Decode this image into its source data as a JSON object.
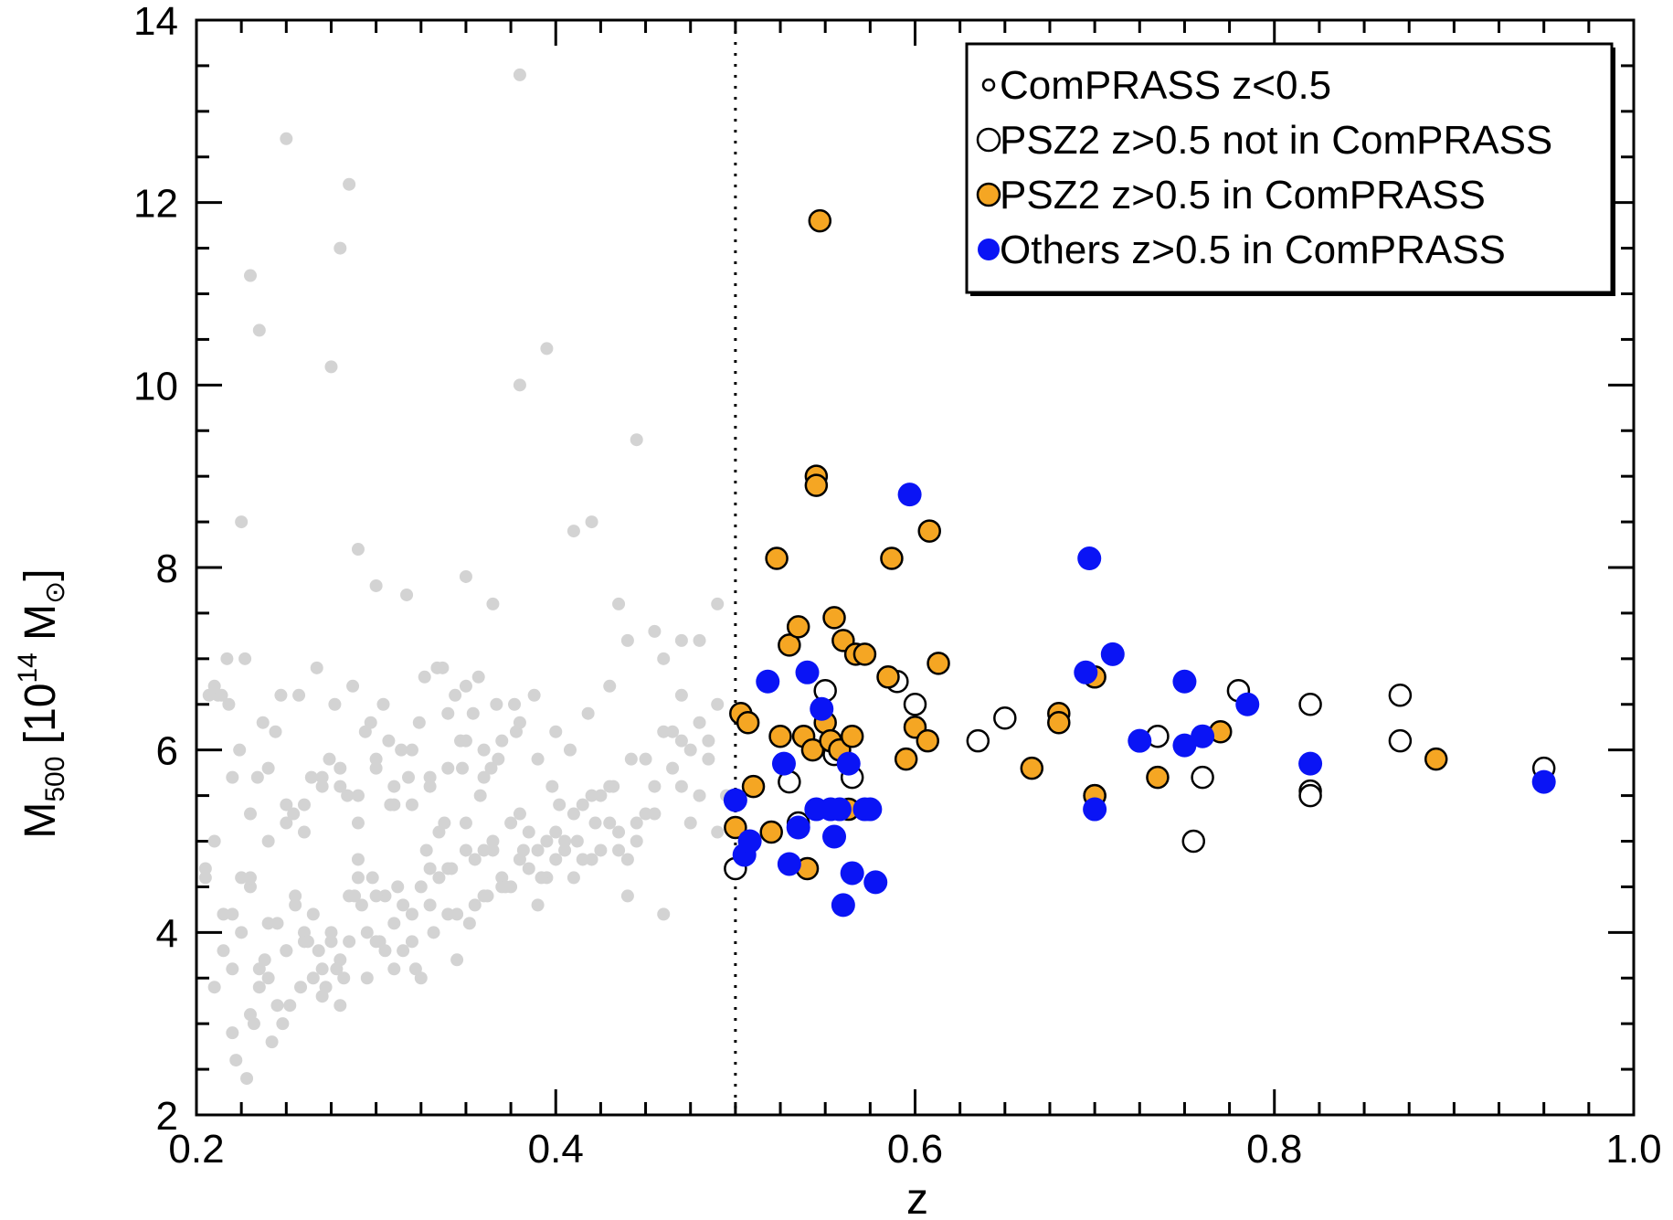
{
  "chart_data": {
    "type": "scatter",
    "xlabel": "z",
    "ylabel": {
      "base": "M",
      "subscript": "500",
      "open": " [10",
      "exponent": "14",
      "unit": " M",
      "unit_subscript": "⊙",
      "close": "]"
    },
    "xlim": [
      0.2,
      1.0
    ],
    "ylim": [
      2,
      14
    ],
    "xticks": [
      "0.2",
      "0.4",
      "0.6",
      "0.8",
      "1.0"
    ],
    "yticks": [
      "2",
      "4",
      "6",
      "8",
      "10",
      "12",
      "14"
    ],
    "x_tick_values": [
      0.2,
      0.4,
      0.6,
      0.8,
      1.0
    ],
    "y_tick_values": [
      2,
      4,
      6,
      8,
      10,
      12,
      14
    ],
    "x_minor_step": 0.025,
    "y_minor_step": 0.5,
    "grid": false,
    "vertical_line": {
      "x": 0.5,
      "style": "dotted"
    },
    "legend": {
      "placement": "top-right",
      "entries": [
        {
          "label": "ComPRASS z<0.5",
          "marker": "small-open",
          "color": "#ffffff"
        },
        {
          "label": "PSZ2 z>0.5 not in ComPRASS",
          "marker": "open",
          "color": "#ffffff"
        },
        {
          "label": "PSZ2 z>0.5 in ComPRASS",
          "marker": "filled-outlined",
          "color": "#f5a623"
        },
        {
          "label": "Others z>0.5 in ComPRASS",
          "marker": "filled",
          "color": "#0a14f5"
        }
      ]
    },
    "series": [
      {
        "name": "ComPRASS z<0.5",
        "color": "#d3d3d3",
        "x": [
          0.205,
          0.21,
          0.215,
          0.22,
          0.225,
          0.23,
          0.235,
          0.24,
          0.245,
          0.25,
          0.255,
          0.26,
          0.265,
          0.27,
          0.275,
          0.28,
          0.285,
          0.29,
          0.295,
          0.3,
          0.305,
          0.31,
          0.315,
          0.32,
          0.325,
          0.33,
          0.335,
          0.34,
          0.345,
          0.35,
          0.355,
          0.36,
          0.365,
          0.37,
          0.375,
          0.38,
          0.385,
          0.39,
          0.395,
          0.4,
          0.405,
          0.41,
          0.415,
          0.42,
          0.425,
          0.43,
          0.435,
          0.44,
          0.445,
          0.45,
          0.455,
          0.46,
          0.465,
          0.47,
          0.475,
          0.48,
          0.485,
          0.49,
          0.495,
          0.21,
          0.22,
          0.23,
          0.24,
          0.25,
          0.26,
          0.27,
          0.28,
          0.29,
          0.3,
          0.31,
          0.32,
          0.33,
          0.34,
          0.35,
          0.36,
          0.37,
          0.38,
          0.39,
          0.4,
          0.41,
          0.42,
          0.43,
          0.44,
          0.45,
          0.46,
          0.47,
          0.48,
          0.49,
          0.205,
          0.215,
          0.225,
          0.235,
          0.245,
          0.255,
          0.265,
          0.275,
          0.285,
          0.295,
          0.305,
          0.315,
          0.325,
          0.335,
          0.345,
          0.355,
          0.365,
          0.375,
          0.385,
          0.395,
          0.405,
          0.415,
          0.425,
          0.435,
          0.445,
          0.455,
          0.465,
          0.475,
          0.485,
          0.212,
          0.222,
          0.232,
          0.242,
          0.252,
          0.262,
          0.272,
          0.282,
          0.292,
          0.302,
          0.312,
          0.322,
          0.332,
          0.342,
          0.352,
          0.362,
          0.372,
          0.382,
          0.392,
          0.402,
          0.412,
          0.422,
          0.432,
          0.442,
          0.218,
          0.228,
          0.238,
          0.248,
          0.258,
          0.268,
          0.278,
          0.288,
          0.298,
          0.308,
          0.318,
          0.328,
          0.338,
          0.348,
          0.358,
          0.368,
          0.378,
          0.388,
          0.398,
          0.408,
          0.418,
          0.21,
          0.22,
          0.23,
          0.24,
          0.25,
          0.26,
          0.27,
          0.28,
          0.29,
          0.3,
          0.31,
          0.32,
          0.33,
          0.34,
          0.35,
          0.36,
          0.37,
          0.38,
          0.39,
          0.4,
          0.207,
          0.217,
          0.227,
          0.237,
          0.247,
          0.257,
          0.267,
          0.277,
          0.287,
          0.297,
          0.307,
          0.317,
          0.327,
          0.337,
          0.347,
          0.357,
          0.367,
          0.377,
          0.214,
          0.224,
          0.234,
          0.244,
          0.254,
          0.264,
          0.274,
          0.284,
          0.294,
          0.304,
          0.314,
          0.324,
          0.334,
          0.344,
          0.354,
          0.364,
          0.22,
          0.23,
          0.24,
          0.25,
          0.26,
          0.27,
          0.28,
          0.29,
          0.3,
          0.31,
          0.32,
          0.33,
          0.34,
          0.35,
          0.36,
          0.25,
          0.28,
          0.285,
          0.23,
          0.235,
          0.275,
          0.395,
          0.38,
          0.38,
          0.445,
          0.225,
          0.29,
          0.41,
          0.3,
          0.35,
          0.365,
          0.42,
          0.435,
          0.455,
          0.49,
          0.47,
          0.46,
          0.44,
          0.43,
          0.47,
          0.48
        ],
        "y": [
          4.6,
          5.0,
          4.2,
          3.6,
          4.0,
          4.5,
          3.4,
          4.1,
          3.2,
          3.8,
          4.4,
          3.9,
          4.2,
          3.6,
          3.9,
          3.2,
          4.4,
          4.8,
          4.0,
          3.9,
          4.4,
          4.1,
          3.8,
          4.2,
          4.5,
          4.3,
          5.1,
          4.7,
          3.7,
          5.2,
          4.3,
          4.9,
          5.0,
          4.6,
          5.2,
          5.3,
          4.7,
          4.9,
          5.0,
          5.1,
          4.9,
          4.6,
          5.4,
          4.8,
          4.9,
          5.6,
          5.1,
          4.8,
          5.2,
          5.9,
          5.6,
          6.2,
          5.8,
          6.1,
          5.2,
          6.3,
          5.9,
          6.5,
          5.5,
          3.4,
          2.9,
          3.1,
          3.5,
          3.8,
          4.0,
          3.3,
          3.7,
          4.6,
          4.4,
          3.6,
          3.9,
          4.7,
          4.2,
          4.9,
          4.4,
          4.5,
          4.8,
          4.3,
          4.8,
          5.3,
          5.5,
          5.2,
          4.4,
          5.3,
          4.2,
          5.6,
          5.5,
          5.1,
          4.7,
          3.8,
          4.6,
          3.6,
          4.1,
          4.3,
          3.5,
          4.0,
          3.9,
          3.5,
          3.8,
          4.3,
          3.5,
          4.6,
          4.2,
          4.8,
          4.9,
          4.5,
          5.1,
          4.6,
          5.0,
          4.8,
          5.5,
          4.9,
          5.0,
          5.3,
          6.2,
          6.0,
          6.1,
          6.6,
          2.6,
          3.0,
          2.8,
          3.2,
          3.9,
          3.4,
          3.5,
          4.3,
          3.9,
          4.5,
          3.6,
          4.0,
          4.7,
          4.1,
          4.4,
          4.5,
          4.9,
          4.6,
          5.4,
          5.0,
          5.2,
          5.6,
          5.9,
          6.5,
          2.4,
          3.7,
          3.0,
          3.4,
          3.8,
          3.6,
          4.4,
          4.6,
          5.4,
          5.7,
          4.9,
          5.2,
          5.8,
          5.5,
          5.9,
          6.2,
          6.6,
          5.6,
          6.0,
          6.4,
          6.7,
          4.2,
          4.6,
          5.0,
          5.4,
          5.1,
          5.6,
          5.6,
          5.2,
          5.9,
          5.4,
          6.0,
          5.7,
          6.4,
          6.7,
          6.0,
          6.1,
          6.3,
          5.9,
          6.2,
          6.6,
          7.0,
          7.0,
          6.3,
          6.6,
          6.6,
          6.9,
          6.5,
          6.7,
          6.3,
          6.1,
          7.7,
          6.8,
          6.9,
          6.1,
          6.8,
          6.5,
          6.5,
          6.6,
          6.0,
          5.7,
          6.2,
          5.3,
          5.7,
          5.9,
          5.5,
          6.2,
          6.5,
          6.0,
          6.3,
          6.9,
          6.6,
          6.4,
          5.8,
          5.7,
          5.3,
          5.8,
          5.2,
          5.4,
          5.7,
          5.8,
          5.5,
          5.8,
          5.6,
          5.4,
          5.6,
          5.8,
          6.1,
          5.7,
          12.7,
          11.5,
          12.2,
          11.2,
          10.6,
          10.2,
          10.4,
          10.0,
          13.4,
          9.4,
          8.5,
          8.2,
          8.4,
          7.8,
          7.9,
          7.6,
          8.5,
          7.6,
          7.3,
          7.6,
          7.2,
          7.0,
          7.2,
          6.7,
          6.6,
          7.2
        ],
        "marker": "small-filled"
      },
      {
        "name": "PSZ2 z>0.5 not in ComPRASS",
        "color": "#ffffff",
        "x": [
          0.5,
          0.53,
          0.535,
          0.55,
          0.555,
          0.565,
          0.59,
          0.6,
          0.635,
          0.65,
          0.7,
          0.735,
          0.755,
          0.76,
          0.78,
          0.82,
          0.82,
          0.82,
          0.87,
          0.87,
          0.95
        ],
        "y": [
          4.7,
          5.65,
          5.2,
          6.65,
          5.95,
          5.7,
          6.75,
          6.5,
          6.1,
          6.35,
          5.5,
          6.15,
          5.0,
          5.7,
          6.65,
          6.5,
          5.55,
          5.5,
          6.6,
          6.1,
          5.8
        ],
        "marker": "open"
      },
      {
        "name": "PSZ2 z>0.5 in ComPRASS",
        "color": "#f5a623",
        "x": [
          0.5,
          0.503,
          0.507,
          0.51,
          0.52,
          0.523,
          0.525,
          0.53,
          0.535,
          0.538,
          0.54,
          0.543,
          0.545,
          0.545,
          0.547,
          0.55,
          0.553,
          0.555,
          0.558,
          0.56,
          0.563,
          0.565,
          0.567,
          0.572,
          0.585,
          0.587,
          0.595,
          0.6,
          0.607,
          0.608,
          0.613,
          0.665,
          0.68,
          0.68,
          0.7,
          0.7,
          0.735,
          0.77,
          0.89
        ],
        "y": [
          5.15,
          6.4,
          6.3,
          5.6,
          5.1,
          8.1,
          6.15,
          7.15,
          7.35,
          6.15,
          4.7,
          6.0,
          9.0,
          8.9,
          11.8,
          6.3,
          6.1,
          7.45,
          6.0,
          7.2,
          5.35,
          6.15,
          7.05,
          7.05,
          6.8,
          8.1,
          5.9,
          6.25,
          6.1,
          8.4,
          6.95,
          5.8,
          6.4,
          6.3,
          5.5,
          6.8,
          5.7,
          6.2,
          5.9
        ],
        "marker": "filled-outlined"
      },
      {
        "name": "Others z>0.5 in ComPRASS",
        "color": "#0a14f5",
        "x": [
          0.5,
          0.505,
          0.508,
          0.518,
          0.527,
          0.53,
          0.535,
          0.54,
          0.545,
          0.548,
          0.553,
          0.555,
          0.558,
          0.56,
          0.563,
          0.565,
          0.572,
          0.575,
          0.578,
          0.597,
          0.695,
          0.697,
          0.7,
          0.71,
          0.725,
          0.75,
          0.75,
          0.76,
          0.785,
          0.82,
          0.95
        ],
        "y": [
          5.45,
          4.85,
          5.0,
          6.75,
          5.85,
          4.75,
          5.15,
          6.85,
          5.35,
          6.45,
          5.35,
          5.05,
          5.35,
          4.3,
          5.85,
          4.65,
          5.35,
          5.35,
          4.55,
          8.8,
          6.85,
          8.1,
          5.35,
          7.05,
          6.1,
          6.05,
          6.75,
          6.15,
          6.5,
          5.85,
          5.65
        ],
        "marker": "filled"
      }
    ]
  }
}
